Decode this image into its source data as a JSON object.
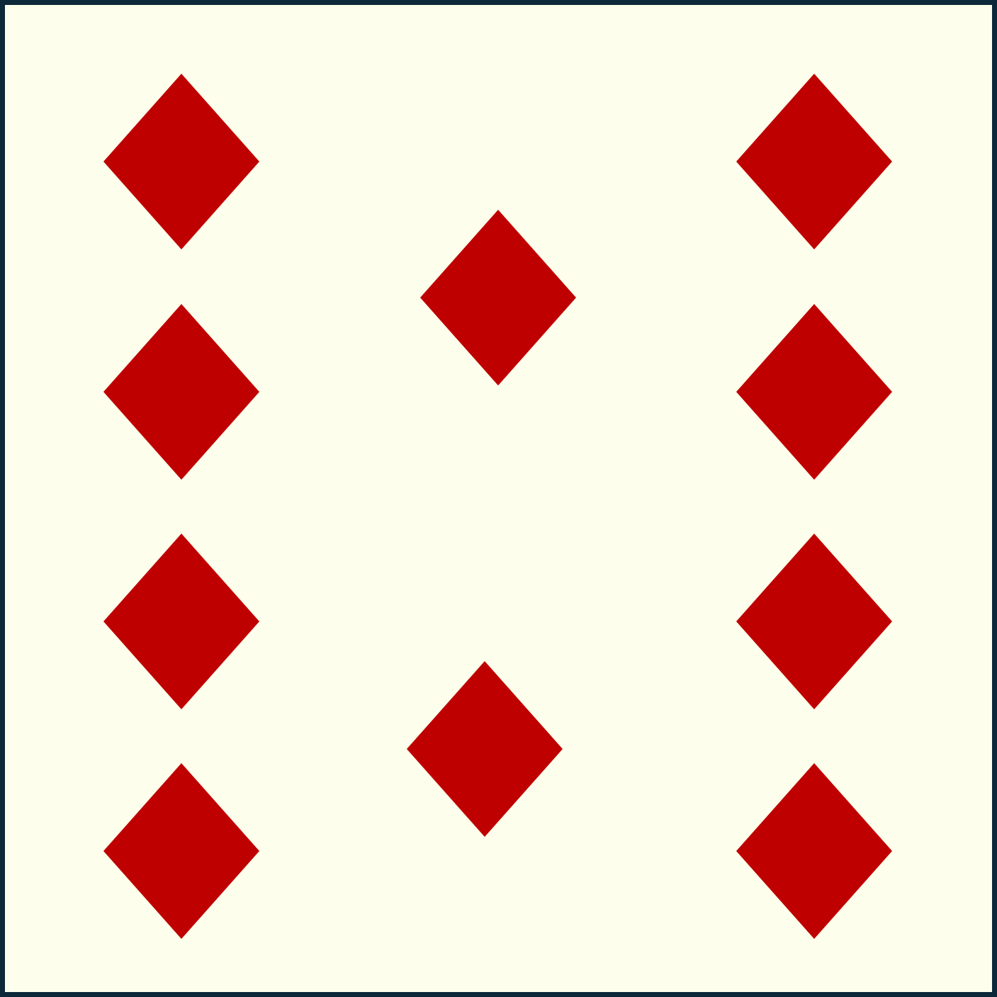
{
  "card": {
    "suit": "diamonds",
    "pip_count": 10,
    "pip_icon": "diamond-icon",
    "colors": {
      "background": "#fdffec",
      "border": "#0d2838",
      "pip": "#bf0000"
    }
  }
}
